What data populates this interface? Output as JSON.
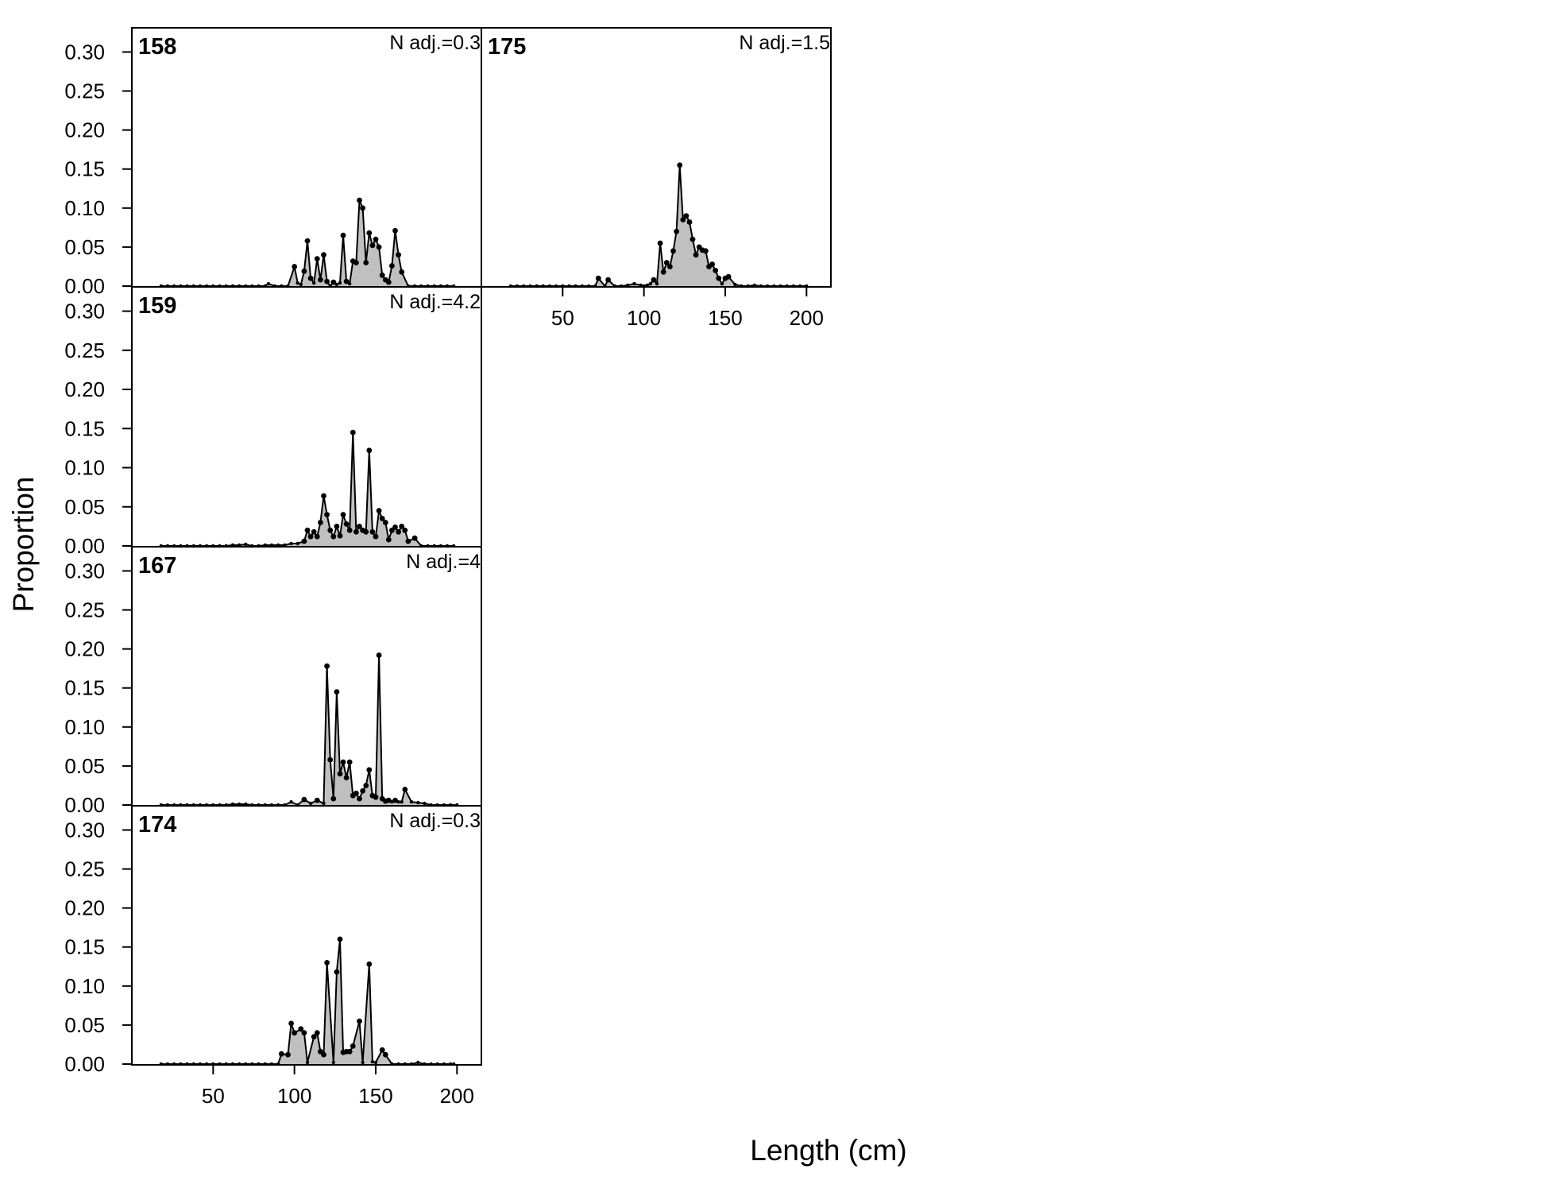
{
  "figure": {
    "xlabel": "Length (cm)",
    "ylabel": "Proportion"
  },
  "chart_data": [
    {
      "type": "area",
      "panel": "158",
      "annotation": "N adj.=0.3",
      "ylim": [
        0,
        0.33
      ],
      "xlim": [
        0,
        215
      ],
      "yticks": [
        "0.00",
        "0.05",
        "0.10",
        "0.15",
        "0.20",
        "0.25",
        "0.30"
      ],
      "xticks": [],
      "x": [
        18,
        22,
        26,
        30,
        34,
        38,
        42,
        46,
        50,
        54,
        58,
        62,
        66,
        70,
        74,
        78,
        82,
        84,
        88,
        92,
        96,
        100,
        102,
        104,
        106,
        108,
        110,
        112,
        114,
        116,
        118,
        120,
        122,
        124,
        126,
        128,
        130,
        132,
        134,
        136,
        138,
        140,
        142,
        144,
        146,
        148,
        150,
        152,
        154,
        156,
        158,
        160,
        162,
        164,
        166,
        170,
        174,
        178,
        182,
        186,
        190,
        194,
        198
      ],
      "y": [
        0,
        0,
        0,
        0,
        0,
        0,
        0,
        0,
        0,
        0,
        0,
        0,
        0,
        0,
        0,
        0,
        0,
        0.003,
        0,
        0,
        0,
        0.025,
        0.004,
        0.002,
        0.019,
        0.058,
        0.01,
        0.004,
        0.035,
        0.008,
        0.04,
        0.006,
        0,
        0.005,
        0.002,
        0.004,
        0.065,
        0.006,
        0.003,
        0.032,
        0.03,
        0.11,
        0.1,
        0.03,
        0.068,
        0.052,
        0.06,
        0.05,
        0.014,
        0.008,
        0.005,
        0.026,
        0.071,
        0.04,
        0.018,
        0,
        0,
        0,
        0,
        0,
        0,
        0,
        0
      ]
    },
    {
      "type": "area",
      "panel": "159",
      "annotation": "N adj.=4.2",
      "ylim": [
        0,
        0.33
      ],
      "xlim": [
        0,
        215
      ],
      "yticks": [
        "0.00",
        "0.05",
        "0.10",
        "0.15",
        "0.20",
        "0.25",
        "0.30"
      ],
      "xticks": [],
      "x": [
        18,
        22,
        26,
        30,
        34,
        38,
        42,
        46,
        50,
        54,
        58,
        62,
        66,
        70,
        74,
        78,
        82,
        86,
        90,
        94,
        98,
        102,
        106,
        108,
        110,
        112,
        114,
        116,
        118,
        120,
        122,
        124,
        126,
        128,
        130,
        132,
        134,
        136,
        138,
        140,
        142,
        144,
        146,
        148,
        150,
        152,
        154,
        156,
        158,
        160,
        162,
        164,
        166,
        168,
        170,
        174,
        178,
        182,
        186,
        190,
        194,
        198
      ],
      "y": [
        0,
        0,
        0,
        0,
        0,
        0,
        0,
        0,
        0,
        0,
        0,
        0.001,
        0.001,
        0.002,
        0,
        0,
        0.001,
        0.001,
        0.001,
        0.001,
        0.003,
        0.003,
        0.006,
        0.02,
        0.012,
        0.018,
        0.012,
        0.03,
        0.064,
        0.04,
        0.02,
        0.012,
        0.025,
        0.013,
        0.04,
        0.028,
        0.02,
        0.145,
        0.018,
        0.025,
        0.02,
        0.018,
        0.122,
        0.018,
        0.012,
        0.045,
        0.035,
        0.03,
        0.008,
        0.02,
        0.024,
        0.018,
        0.025,
        0.02,
        0.006,
        0.01,
        0,
        0,
        0,
        0,
        0,
        0
      ]
    },
    {
      "type": "area",
      "panel": "167",
      "annotation": "N adj.=4",
      "ylim": [
        0,
        0.33
      ],
      "xlim": [
        0,
        215
      ],
      "yticks": [
        "0.00",
        "0.05",
        "0.10",
        "0.15",
        "0.20",
        "0.25",
        "0.30"
      ],
      "xticks": [],
      "x": [
        18,
        22,
        26,
        30,
        34,
        38,
        42,
        46,
        50,
        54,
        58,
        62,
        66,
        70,
        74,
        78,
        82,
        86,
        90,
        94,
        98,
        102,
        106,
        110,
        114,
        118,
        120,
        122,
        124,
        126,
        128,
        130,
        132,
        134,
        136,
        138,
        140,
        142,
        144,
        146,
        148,
        150,
        152,
        154,
        156,
        158,
        160,
        162,
        164,
        166,
        168,
        172,
        176,
        180,
        184,
        188,
        192,
        196,
        200
      ],
      "y": [
        0,
        0,
        0,
        0,
        0,
        0,
        0,
        0,
        0,
        0,
        0,
        0.001,
        0.001,
        0.001,
        0,
        0,
        0,
        0,
        0,
        0,
        0.004,
        0,
        0.007,
        0.002,
        0.006,
        0.002,
        0.178,
        0.058,
        0.008,
        0.145,
        0.04,
        0.055,
        0.035,
        0.055,
        0.012,
        0.015,
        0.008,
        0.018,
        0.025,
        0.045,
        0.012,
        0.01,
        0.192,
        0.008,
        0.005,
        0.006,
        0.004,
        0.006,
        0.004,
        0.004,
        0.02,
        0.004,
        0.003,
        0.002,
        0,
        0,
        0,
        0,
        0
      ]
    },
    {
      "type": "area",
      "panel": "174",
      "annotation": "N adj.=0.3",
      "ylim": [
        0,
        0.33
      ],
      "xlim": [
        0,
        215
      ],
      "yticks": [
        "0.00",
        "0.05",
        "0.10",
        "0.15",
        "0.20",
        "0.25",
        "0.30"
      ],
      "xticks": [
        "50",
        "100",
        "150",
        "200"
      ],
      "x": [
        18,
        22,
        26,
        30,
        34,
        38,
        42,
        46,
        50,
        54,
        58,
        62,
        66,
        70,
        74,
        78,
        82,
        86,
        90,
        92,
        96,
        98,
        100,
        104,
        106,
        108,
        112,
        114,
        116,
        118,
        120,
        124,
        126,
        128,
        130,
        132,
        134,
        136,
        140,
        142,
        146,
        148,
        150,
        154,
        156,
        160,
        164,
        168,
        172,
        176,
        180,
        184,
        188,
        192,
        196,
        198
      ],
      "y": [
        0,
        0,
        0,
        0,
        0,
        0,
        0,
        0,
        0,
        0,
        0,
        0,
        0,
        0,
        0,
        0,
        0,
        0,
        0,
        0.013,
        0.012,
        0.052,
        0.04,
        0.045,
        0.04,
        0.002,
        0.035,
        0.04,
        0.016,
        0.012,
        0.13,
        0.002,
        0.118,
        0.16,
        0.015,
        0.016,
        0.016,
        0.023,
        0.055,
        0.002,
        0.128,
        0.003,
        0.002,
        0.018,
        0.012,
        0,
        0,
        0,
        0,
        0.002,
        0,
        0,
        0,
        0,
        0,
        0
      ]
    },
    {
      "type": "area",
      "panel": "175",
      "annotation": "N adj.=1.5",
      "ylim": [
        0,
        0.33
      ],
      "xlim": [
        0,
        215
      ],
      "yticks": [],
      "xticks": [
        "50",
        "100",
        "150",
        "200"
      ],
      "x": [
        18,
        22,
        26,
        30,
        34,
        38,
        42,
        46,
        50,
        54,
        58,
        62,
        66,
        70,
        72,
        76,
        78,
        82,
        86,
        90,
        94,
        98,
        102,
        104,
        106,
        108,
        110,
        112,
        114,
        116,
        118,
        120,
        122,
        124,
        126,
        128,
        130,
        132,
        134,
        136,
        138,
        140,
        142,
        144,
        146,
        148,
        150,
        152,
        156,
        160,
        164,
        168,
        172,
        176,
        180,
        184,
        188,
        192,
        196,
        200
      ],
      "y": [
        0,
        0,
        0,
        0,
        0,
        0,
        0,
        0,
        0,
        0,
        0,
        0,
        0,
        0,
        0.01,
        0,
        0.008,
        0,
        0,
        0.001,
        0.003,
        0.001,
        0.001,
        0.003,
        0.008,
        0.003,
        0.055,
        0.018,
        0.03,
        0.025,
        0.045,
        0.07,
        0.155,
        0.085,
        0.09,
        0.082,
        0.06,
        0.04,
        0.05,
        0.046,
        0.045,
        0.025,
        0.028,
        0.02,
        0.01,
        0.003,
        0.01,
        0.012,
        0.002,
        0,
        0,
        0.001,
        0,
        0,
        0,
        0,
        0,
        0,
        0,
        0
      ]
    }
  ]
}
